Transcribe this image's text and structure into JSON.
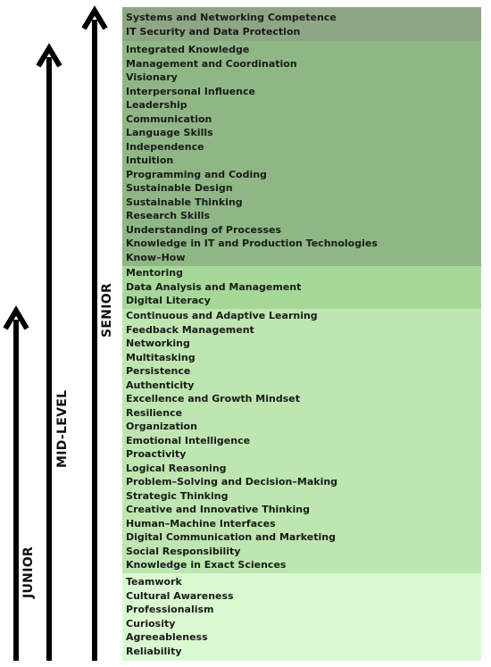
{
  "levels": {
    "junior": "JUNIOR",
    "mid": "MID-LEVEL",
    "senior": "SENIOR"
  },
  "colors": {
    "band1": "#8da785",
    "band2": "#8fb785",
    "band3": "#a6d998",
    "band4": "#bde6b0",
    "band5": "#daf9d0",
    "arrow": "#000000"
  },
  "bands": [
    {
      "items": [
        "Systems and Networking Competence",
        "IT Security and Data Protection"
      ]
    },
    {
      "items": [
        "Integrated Knowledge",
        "Management and Coordination",
        "Visionary",
        "Interpersonal Influence",
        "Leadership",
        "Communication",
        "Language Skills",
        "Independence",
        "Intuition",
        "Programming and Coding",
        "Sustainable Design",
        "Sustainable Thinking",
        "Research Skills",
        "Understanding of Processes",
        "Knowledge in IT and Production Technologies",
        "Know–How"
      ]
    },
    {
      "items": [
        "Mentoring",
        "Data Analysis and Management",
        "Digital Literacy"
      ]
    },
    {
      "items": [
        "Continuous and Adaptive Learning",
        "Feedback Management",
        "Networking",
        "Multitasking",
        "Persistence",
        "Authenticity",
        "Excellence and Growth Mindset",
        "Resilience",
        "Organization",
        "Emotional Intelligence",
        "Proactivity",
        "Logical Reasoning",
        "Problem–Solving and Decision–Making",
        "Strategic Thinking",
        "Creative and Innovative Thinking",
        "Human–Machine Interfaces",
        "Digital Communication and Marketing",
        "Social Responsibility",
        "Knowledge in Exact Sciences"
      ]
    },
    {
      "items": [
        "Teamwork",
        "Cultural Awareness",
        "Professionalism",
        "Curiosity",
        "Agreeableness",
        "Reliability"
      ]
    }
  ]
}
